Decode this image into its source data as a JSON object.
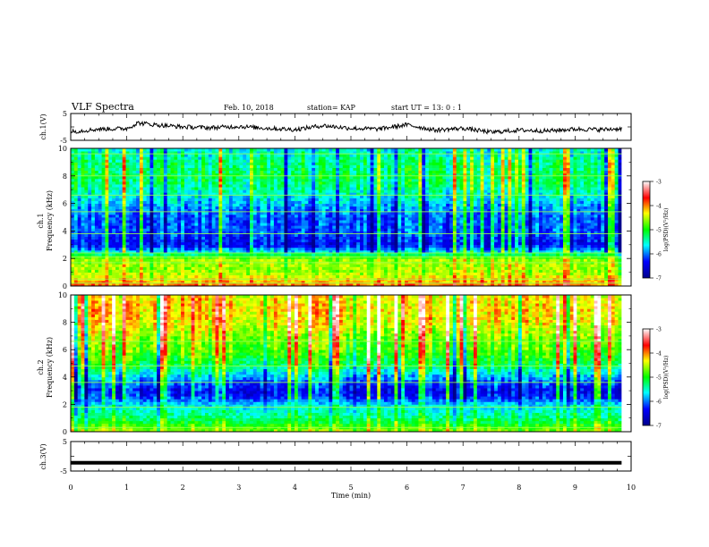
{
  "header": {
    "title": "VLF Spectra",
    "date": "Feb. 10, 2018",
    "station": "station= KAP",
    "start": "start  UT =   13: 0  : 1"
  },
  "chart_data": [
    {
      "type": "line",
      "panel": "ch1-waveform",
      "ylabel": "ch.1(V)",
      "ylim": [
        -5,
        5
      ],
      "yticks": [
        "5",
        "-5"
      ],
      "xlim": [
        0,
        10
      ],
      "note_shape": "noisy waveform around -1 V, amplitude about ±1 V",
      "x": [
        0,
        0.5,
        1.0,
        1.2,
        1.5,
        2.0,
        2.5,
        3.0,
        3.5,
        4.0,
        4.5,
        5.0,
        5.5,
        6.0,
        6.5,
        7.0,
        7.5,
        8.0,
        8.5,
        9.0,
        9.5,
        9.83
      ],
      "values": [
        -1.8,
        -0.8,
        -0.6,
        1.5,
        0.8,
        0.0,
        -0.3,
        0.2,
        -0.5,
        -1.0,
        0.5,
        -0.5,
        -0.8,
        0.8,
        -1.2,
        -0.5,
        -2.0,
        -1.2,
        -1.5,
        -0.8,
        -1.0,
        -0.6
      ]
    },
    {
      "type": "heatmap",
      "panel": "ch1-spectrogram",
      "ylabel": "ch.1\nFrequency (kHz)",
      "ylabel_line1": "ch.1",
      "ylabel_line2": "Frequency (kHz)",
      "ylim": [
        0,
        10
      ],
      "yticks": [
        "0",
        "2",
        "4",
        "6",
        "8",
        "10"
      ],
      "xlim": [
        0,
        9.83
      ],
      "colorbar": {
        "label": "log(PSD)(V²/Hz)",
        "range": [
          -7,
          -3
        ],
        "ticks": [
          "-3",
          "-4",
          "-5",
          "-6",
          "-7"
        ]
      },
      "freq_profile_kHz": [
        0,
        1,
        2,
        2.5,
        3,
        4,
        5,
        6,
        7,
        8,
        9,
        10
      ],
      "log_psd_profile": [
        -3.9,
        -4.6,
        -4.6,
        -5.7,
        -6.4,
        -6.1,
        -6.1,
        -5.8,
        -5.4,
        -5.2,
        -5.3,
        -5.6
      ],
      "horizontal_lines_kHz": [
        0.2,
        0.5,
        1.7,
        2.1,
        2.4,
        3.8,
        5.4,
        6.6,
        8.0,
        9.6
      ]
    },
    {
      "type": "heatmap",
      "panel": "ch2-spectrogram",
      "ylabel_line1": "ch.2",
      "ylabel_line2": "Frequency (kHz)",
      "ylim": [
        0,
        10
      ],
      "yticks": [
        "0",
        "2",
        "4",
        "6",
        "8",
        "10"
      ],
      "xlim": [
        0,
        9.83
      ],
      "colorbar": {
        "label": "log(PSD)(V²/Hz)",
        "range": [
          -7,
          -3
        ],
        "ticks": [
          "-3",
          "-4",
          "-5",
          "-6",
          "-7"
        ]
      },
      "freq_profile_kHz": [
        0,
        1,
        2,
        2.5,
        3,
        4,
        5,
        6,
        7,
        8,
        9,
        10
      ],
      "log_psd_profile": [
        -4.6,
        -5.3,
        -5.7,
        -6.2,
        -6.4,
        -5.8,
        -5.1,
        -4.8,
        -4.6,
        -4.3,
        -4.2,
        -4.3
      ],
      "horizontal_lines_kHz": [
        0.3,
        1.8,
        3.6,
        4.8,
        6.6
      ]
    },
    {
      "type": "line",
      "panel": "ch3-waveform",
      "ylabel": "ch.3(V)",
      "ylim": [
        -5,
        5
      ],
      "yticks": [
        "5",
        "-5"
      ],
      "xlim": [
        0,
        10
      ],
      "x": [
        0,
        9.83
      ],
      "values": [
        -2.2,
        -2.2
      ]
    }
  ],
  "xaxis": {
    "label": "Time (min)",
    "ticks": [
      "0",
      "1",
      "2",
      "3",
      "4",
      "5",
      "6",
      "7",
      "8",
      "9",
      "10"
    ]
  }
}
